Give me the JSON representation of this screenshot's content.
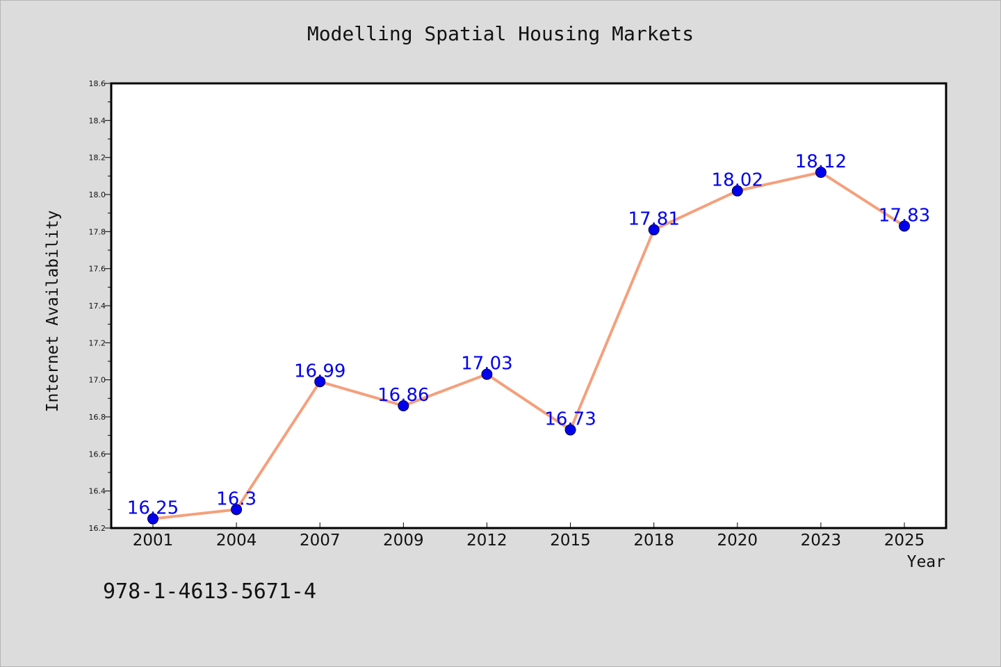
{
  "chart_data": {
    "type": "line",
    "title": "Modelling Spatial Housing Markets",
    "xlabel": "Year",
    "ylabel": "Internet Availability",
    "categories": [
      "2001",
      "2004",
      "2007",
      "2009",
      "2012",
      "2015",
      "2018",
      "2020",
      "2023",
      "2025"
    ],
    "series": [
      {
        "values": [
          16.25,
          16.3,
          16.99,
          16.86,
          17.03,
          16.73,
          17.81,
          18.02,
          18.12,
          17.83
        ],
        "data_labels": [
          "16.25",
          "16.3",
          "16.99",
          "16.86",
          "17.03",
          "16.73",
          "17.81",
          "18.02",
          "18.12",
          "17.83"
        ]
      }
    ],
    "ylim": [
      16.2,
      18.6
    ],
    "yticks": [
      "16.2",
      "16.4",
      "16.6",
      "16.8",
      "17.0",
      "17.2",
      "17.4",
      "17.6",
      "17.8",
      "18.0",
      "18.2",
      "18.4",
      "18.6"
    ],
    "grid": false,
    "line_color": "#f4a07c",
    "marker_color": "#0000ee",
    "label_color": "#0000ee"
  },
  "footer": {
    "code": "978-1-4613-5671-4"
  }
}
